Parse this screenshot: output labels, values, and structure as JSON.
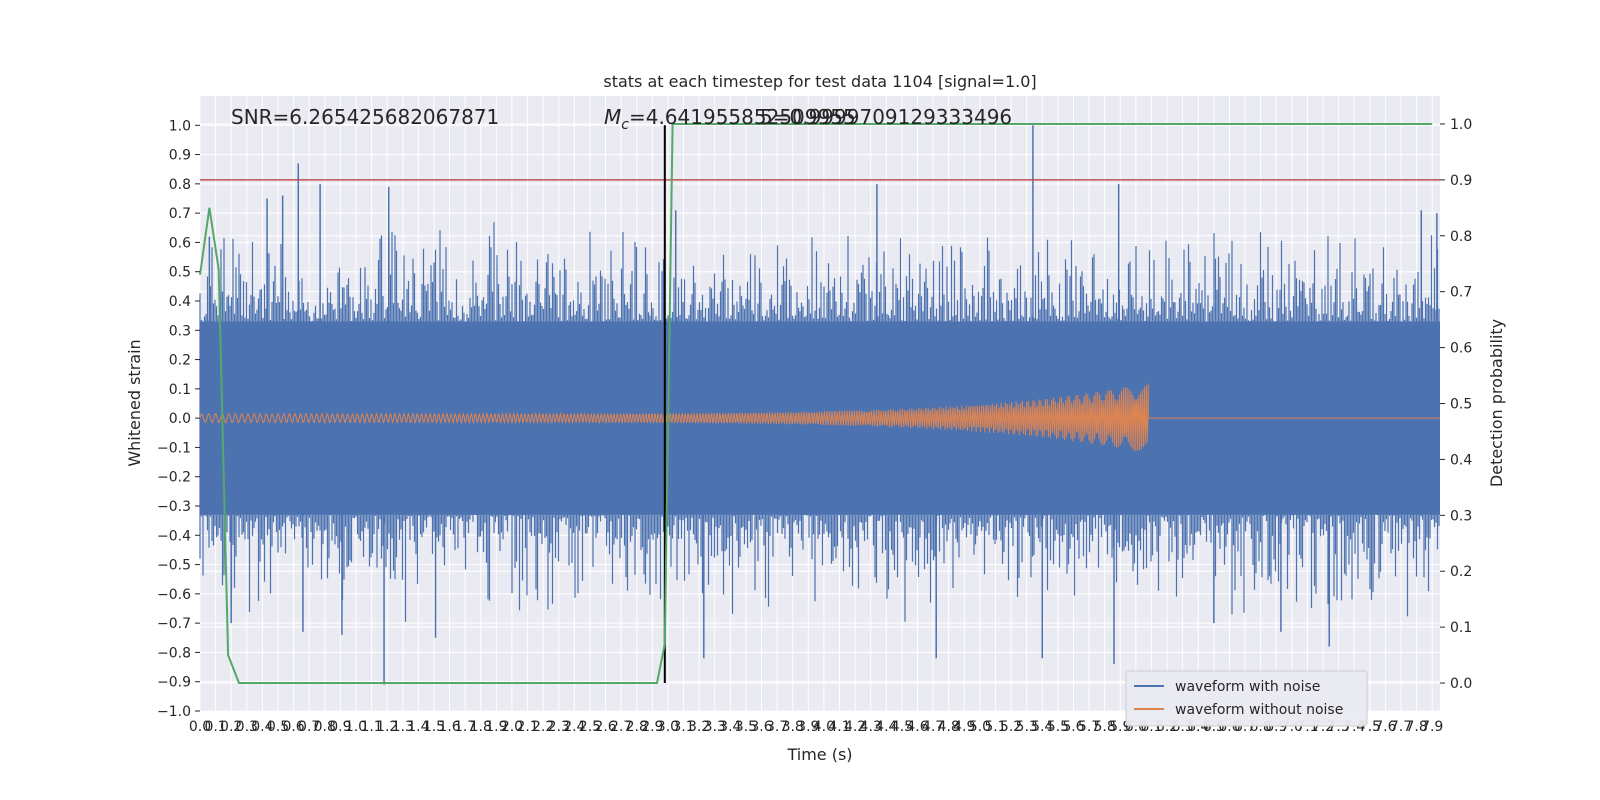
{
  "chart_data": {
    "type": "line",
    "title": "stats at each timestep for test data 1104 [signal=1.0]",
    "xlabel": "Time (s)",
    "ylabel": "Whitened strain",
    "ylabel_right": "Detection probability",
    "xlim": [
      0.0,
      7.95
    ],
    "ylim": [
      -1.0,
      1.1
    ],
    "ylim_right": [
      -0.05,
      1.05
    ],
    "x_ticks": [
      0.0,
      0.1,
      0.2,
      0.3,
      0.4,
      0.5,
      0.6,
      0.7,
      0.8,
      0.9,
      1.0,
      1.1,
      1.2,
      1.3,
      1.4,
      1.5,
      1.6,
      1.7,
      1.8,
      1.9,
      2.0,
      2.1,
      2.2,
      2.3,
      2.4,
      2.5,
      2.6,
      2.7,
      2.8,
      2.9,
      3.0,
      3.1,
      3.2,
      3.3,
      3.4,
      3.5,
      3.6,
      3.7,
      3.8,
      3.9,
      4.0,
      4.1,
      4.2,
      4.3,
      4.4,
      4.5,
      4.6,
      4.7,
      4.8,
      4.9,
      5.0,
      5.1,
      5.2,
      5.3,
      5.4,
      5.5,
      5.6,
      5.7,
      5.8,
      5.9,
      6.0,
      6.1,
      6.2,
      6.3,
      6.4,
      6.5,
      6.6,
      6.7,
      6.8,
      6.9,
      7.0,
      7.1,
      7.2,
      7.3,
      7.4,
      7.5,
      7.6,
      7.7,
      7.8,
      7.9
    ],
    "y_ticks": [
      -1.0,
      -0.9,
      -0.8,
      -0.7,
      -0.6,
      -0.5,
      -0.4,
      -0.3,
      -0.2,
      -0.1,
      0.0,
      0.1,
      0.2,
      0.3,
      0.4,
      0.5,
      0.6,
      0.7,
      0.8,
      0.9,
      1.0
    ],
    "y_ticks_right": [
      0.0,
      0.1,
      0.2,
      0.3,
      0.4,
      0.5,
      0.6,
      0.7,
      0.8,
      0.9,
      1.0
    ],
    "grid": true,
    "legend_position": "lower-right",
    "annotations": {
      "snr": "SNR=6.265425682067871",
      "mc_prefix": "M",
      "mc_sub": "c",
      "mc_value": "=4.641955852509955",
      "overlap": "5=0.9999709129333496"
    },
    "threshold_line": {
      "y_right": 0.9,
      "color": "#c44e52"
    },
    "event_marker": {
      "x": 2.98,
      "color": "#000000"
    },
    "series": [
      {
        "name": "waveform with noise",
        "color": "#4c72b0",
        "description": "dense noisy strain, band approx -0.35 to 0.35 with spikes",
        "spikes": [
          {
            "x": 0.63,
            "y": 0.87
          },
          {
            "x": 0.77,
            "y": 0.8
          },
          {
            "x": 1.21,
            "y": 0.79
          },
          {
            "x": 0.43,
            "y": 0.75
          },
          {
            "x": 0.53,
            "y": 0.76
          },
          {
            "x": 0.06,
            "y": 0.62
          },
          {
            "x": 1.18,
            "y": -0.91
          },
          {
            "x": 0.2,
            "y": -0.7
          },
          {
            "x": 0.66,
            "y": -0.73
          },
          {
            "x": 0.91,
            "y": -0.74
          },
          {
            "x": 1.51,
            "y": -0.75
          },
          {
            "x": 3.23,
            "y": -0.82
          },
          {
            "x": 4.34,
            "y": 0.8
          },
          {
            "x": 5.34,
            "y": 1.0
          },
          {
            "x": 5.89,
            "y": 0.8
          },
          {
            "x": 4.72,
            "y": -0.82
          },
          {
            "x": 5.4,
            "y": -0.82
          },
          {
            "x": 5.86,
            "y": -0.84
          },
          {
            "x": 7.24,
            "y": -0.78
          },
          {
            "x": 7.83,
            "y": 0.71
          },
          {
            "x": 7.93,
            "y": 0.7
          },
          {
            "x": 6.5,
            "y": -0.7
          },
          {
            "x": 6.93,
            "y": -0.73
          },
          {
            "x": 3.05,
            "y": 0.71
          }
        ]
      },
      {
        "name": "waveform without noise",
        "color": "#dd8452",
        "description": "chirp from 0 to ~6.08 s, amplitude grows from 0.015 to ~0.12, zero afterwards",
        "t_end": 6.08,
        "amp_start": 0.015,
        "amp_end": 0.12
      },
      {
        "name": "detection probability",
        "color": "#55a868",
        "axis": "right",
        "x": [
          0.0,
          0.06,
          0.12,
          0.18,
          0.25,
          2.93,
          2.98,
          3.03,
          7.9
        ],
        "y": [
          0.73,
          0.85,
          0.74,
          0.05,
          0.0,
          0.0,
          0.07,
          1.0,
          1.0
        ]
      }
    ]
  }
}
